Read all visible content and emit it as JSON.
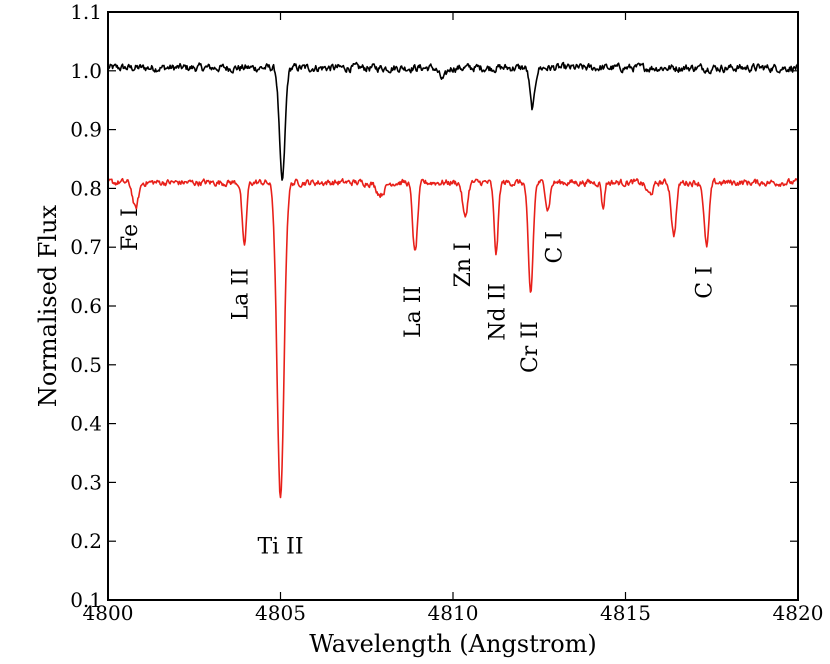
{
  "chart_data": {
    "type": "line",
    "title": "",
    "xlabel": "Wavelength (Angstrom)",
    "ylabel": "Normalised Flux",
    "xlim": [
      4800,
      4820
    ],
    "ylim": [
      0.1,
      1.1
    ],
    "x_ticks": [
      4800,
      4805,
      4810,
      4815,
      4820
    ],
    "y_ticks": [
      0.1,
      0.2,
      0.3,
      0.4,
      0.5,
      0.6,
      0.7,
      0.8,
      0.9,
      1.0,
      1.1
    ],
    "x_tick_labels": [
      "4800",
      "4805",
      "4810",
      "4815",
      "4820"
    ],
    "y_tick_labels": [
      "0.1",
      "0.2",
      "0.3",
      "0.4",
      "0.5",
      "0.6",
      "0.7",
      "0.8",
      "0.9",
      "1.0",
      "1.1"
    ],
    "grid": false,
    "series": [
      {
        "color": "#000000",
        "continuum": 1.005,
        "noise": 0.012,
        "lines": [
          {
            "x": 4805.05,
            "depth": 0.195,
            "width": 0.08
          },
          {
            "x": 4812.3,
            "depth": 0.07,
            "width": 0.07
          },
          {
            "x": 4809.7,
            "depth": 0.02,
            "width": 0.1
          }
        ]
      },
      {
        "color": "#e8201a",
        "continuum": 0.81,
        "noise": 0.01,
        "lines": [
          {
            "x": 4800.8,
            "depth": 0.045,
            "width": 0.08
          },
          {
            "x": 4803.95,
            "depth": 0.11,
            "width": 0.06
          },
          {
            "x": 4805.0,
            "depth": 0.54,
            "width": 0.1
          },
          {
            "x": 4808.9,
            "depth": 0.12,
            "width": 0.07
          },
          {
            "x": 4810.35,
            "depth": 0.06,
            "width": 0.07
          },
          {
            "x": 4811.25,
            "depth": 0.12,
            "width": 0.06
          },
          {
            "x": 4812.25,
            "depth": 0.19,
            "width": 0.07
          },
          {
            "x": 4812.75,
            "depth": 0.045,
            "width": 0.06
          },
          {
            "x": 4814.35,
            "depth": 0.045,
            "width": 0.04
          },
          {
            "x": 4816.4,
            "depth": 0.09,
            "width": 0.07
          },
          {
            "x": 4817.35,
            "depth": 0.11,
            "width": 0.07
          },
          {
            "x": 4807.9,
            "depth": 0.02,
            "width": 0.12
          },
          {
            "x": 4815.7,
            "depth": 0.02,
            "width": 0.1
          }
        ]
      }
    ],
    "annotations": [
      {
        "label": "Fe I",
        "x": 4800.65,
        "y": 0.73,
        "rotate": -90
      },
      {
        "label": "La II",
        "x": 4803.85,
        "y": 0.62,
        "rotate": -90
      },
      {
        "label": "Ti II",
        "x": 4805.0,
        "y": 0.19,
        "rotate": 0
      },
      {
        "label": "La II",
        "x": 4808.85,
        "y": 0.59,
        "rotate": -90
      },
      {
        "label": "Zn I",
        "x": 4810.3,
        "y": 0.67,
        "rotate": -90
      },
      {
        "label": "Nd II",
        "x": 4811.3,
        "y": 0.59,
        "rotate": -90
      },
      {
        "label": "Cr II",
        "x": 4812.25,
        "y": 0.53,
        "rotate": -90
      },
      {
        "label": "C I",
        "x": 4812.95,
        "y": 0.7,
        "rotate": -90
      },
      {
        "label": "C I",
        "x": 4817.3,
        "y": 0.64,
        "rotate": -90
      }
    ]
  }
}
